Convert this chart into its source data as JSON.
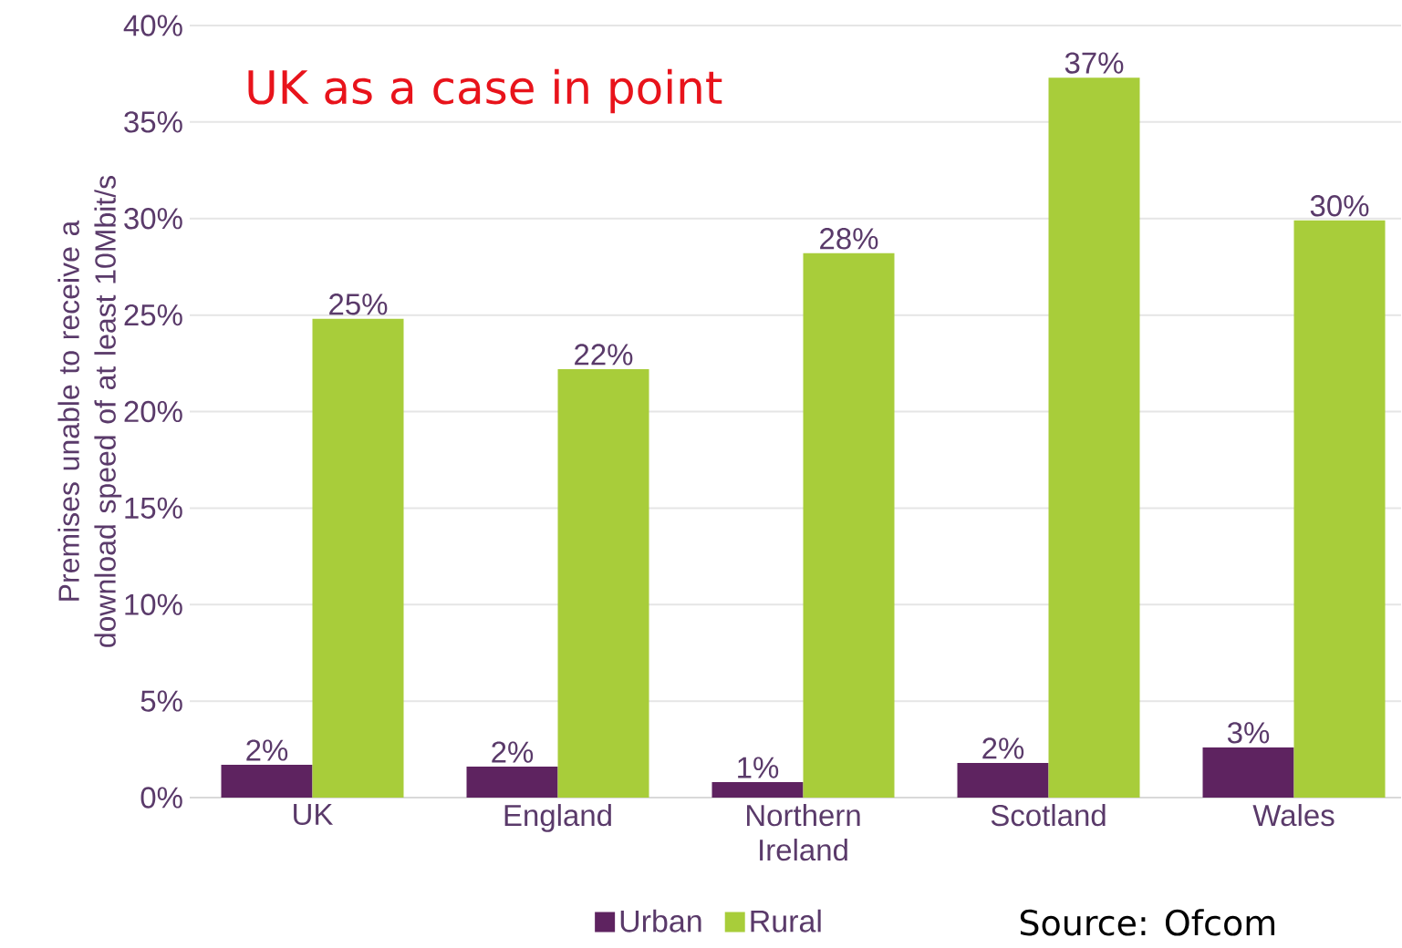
{
  "chart_data": {
    "type": "bar",
    "title": "UK as a case in point",
    "ylabel": "Premises unable to receive a download speed of at least 10Mbit/s",
    "categories": [
      "UK",
      "England",
      "Northern Ireland",
      "Scotland",
      "Wales"
    ],
    "series": [
      {
        "name": "Urban",
        "color": "#5e2360",
        "values": [
          1.7,
          1.6,
          0.8,
          1.8,
          2.6
        ],
        "value_labels": [
          "2%",
          "2%",
          "1%",
          "2%",
          "3%"
        ]
      },
      {
        "name": "Rural",
        "color": "#a8cd3a",
        "values": [
          24.8,
          22.2,
          28.2,
          37.3,
          29.9
        ],
        "value_labels": [
          "25%",
          "22%",
          "28%",
          "37%",
          "30%"
        ]
      }
    ],
    "ylim": [
      0,
      40
    ],
    "yticks": [
      {
        "value": 0,
        "label": "0%"
      },
      {
        "value": 5,
        "label": "5%"
      },
      {
        "value": 10,
        "label": "10%"
      },
      {
        "value": 15,
        "label": "15%"
      },
      {
        "value": 20,
        "label": "20%"
      },
      {
        "value": 25,
        "label": "25%"
      },
      {
        "value": 30,
        "label": "30%"
      },
      {
        "value": 35,
        "label": "35%"
      },
      {
        "value": 40,
        "label": "40%"
      }
    ],
    "grid": "y",
    "legend": "bottom",
    "annotations": [
      "Source: Ofcom"
    ]
  }
}
